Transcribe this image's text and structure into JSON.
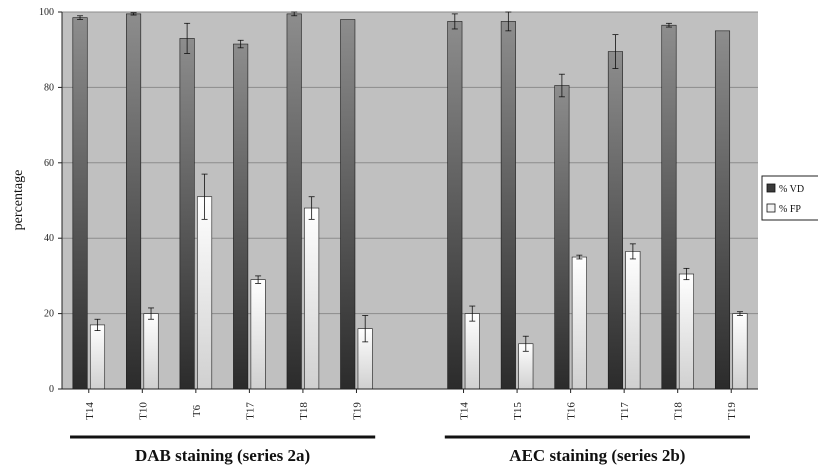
{
  "chart_data": {
    "type": "bar",
    "ylabel": "percentage",
    "ylim": [
      0,
      100
    ],
    "yticks": [
      "0",
      "20",
      "40",
      "60",
      "80",
      "100"
    ],
    "grid": true,
    "legend_placement": "right",
    "colors": {
      "plot_bg": "#c0c0c0",
      "vd_series": "#6e6e6e",
      "fp_series": "#efefef",
      "grid": "#8c8c8c"
    },
    "groups": [
      {
        "label": "DAB staining (series 2a)",
        "categories": [
          "T14",
          "T10",
          "T6",
          "T17",
          "T18",
          "T19"
        ],
        "series": [
          {
            "name": "% VD",
            "values": [
              98.5,
              99.5,
              93,
              91.5,
              99.5,
              98
            ],
            "errors": [
              0.5,
              0.3,
              4,
              1,
              0.5,
              0
            ]
          },
          {
            "name": "% FP",
            "values": [
              17,
              20,
              51,
              29,
              48,
              16
            ],
            "errors": [
              1.5,
              1.5,
              6,
              1,
              3,
              3.5
            ]
          }
        ]
      },
      {
        "label": "AEC staining (series 2b)",
        "categories": [
          "T14",
          "T15",
          "T16",
          "T17",
          "T18",
          "T19"
        ],
        "series": [
          {
            "name": "% VD",
            "values": [
              97.5,
              97.5,
              80.5,
              89.5,
              96.5,
              95
            ],
            "errors": [
              2,
              2.5,
              3,
              4.5,
              0.5,
              0
            ]
          },
          {
            "name": "% FP",
            "values": [
              20,
              12,
              35,
              36.5,
              30.5,
              20
            ],
            "errors": [
              2,
              2,
              0.5,
              2,
              1.5,
              0.5
            ]
          }
        ]
      }
    ]
  }
}
